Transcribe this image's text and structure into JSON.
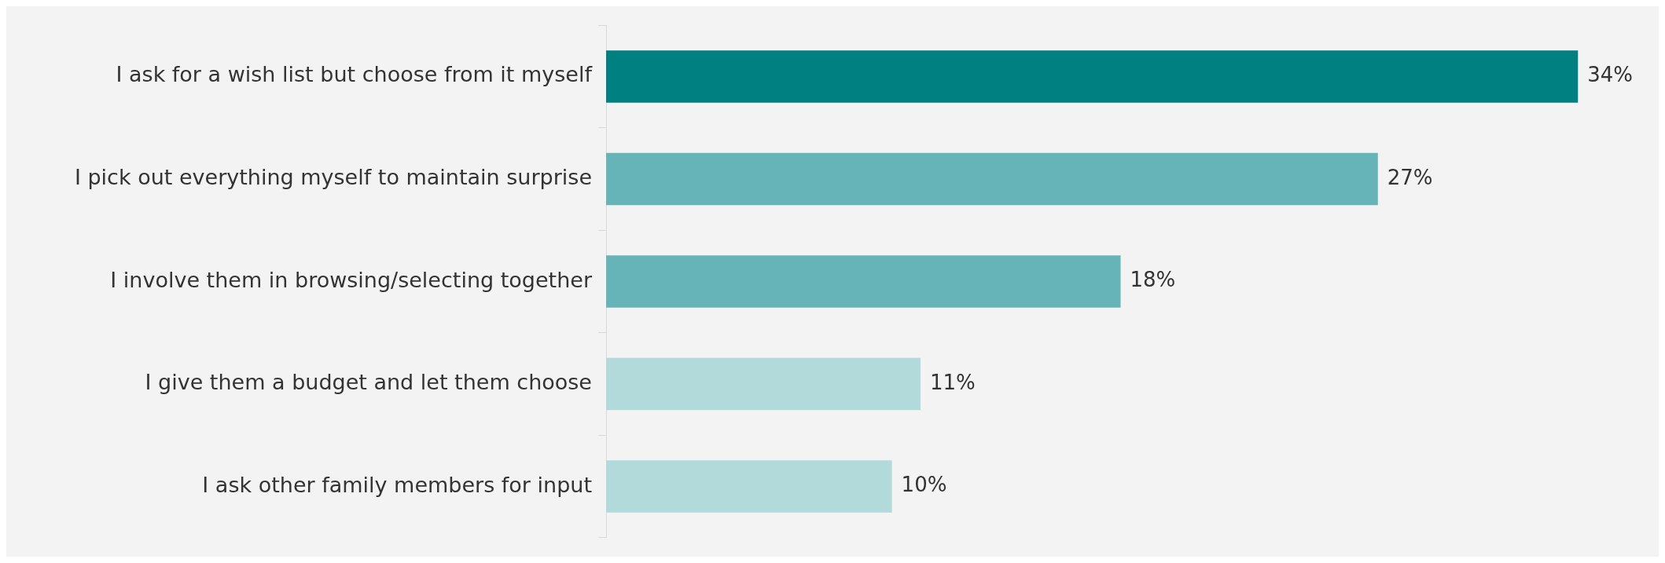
{
  "chart_data": {
    "type": "bar",
    "orientation": "horizontal",
    "categories": [
      "I ask for a wish list but choose from it myself",
      "I pick out everything myself to maintain surprise",
      "I involve them in browsing/selecting together",
      "I give them a budget and let them choose",
      "I ask other family members for input"
    ],
    "values": [
      34,
      27,
      18,
      11,
      10
    ],
    "colors": [
      "#008080",
      "#66b3b8",
      "#66b3b8",
      "#b2dadb",
      "#b2dadb"
    ],
    "value_labels": [
      "34%",
      "27%",
      "18%",
      "11%",
      "10%"
    ],
    "legend": false
  }
}
